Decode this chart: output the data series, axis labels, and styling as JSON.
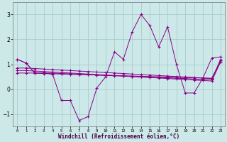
{
  "x": [
    0,
    1,
    2,
    3,
    4,
    5,
    6,
    7,
    8,
    9,
    10,
    11,
    12,
    13,
    14,
    15,
    16,
    17,
    18,
    19,
    20,
    21,
    22,
    23
  ],
  "line1": [
    1.2,
    1.05,
    0.65,
    0.65,
    0.6,
    -0.45,
    -0.45,
    -1.25,
    -1.1,
    0.05,
    0.5,
    1.5,
    1.2,
    2.3,
    3.0,
    2.55,
    1.7,
    2.5,
    1.0,
    -0.15,
    -0.15,
    0.45,
    1.25,
    1.3
  ],
  "line2": [
    1.2,
    1.05,
    0.65,
    0.65,
    0.65,
    0.63,
    0.62,
    0.6,
    0.58,
    0.57,
    0.55,
    0.54,
    0.53,
    0.51,
    0.5,
    0.48,
    0.47,
    0.46,
    0.44,
    0.43,
    0.41,
    0.4,
    0.38,
    1.2
  ],
  "line3": [
    0.65,
    0.65,
    0.65,
    0.63,
    0.62,
    0.61,
    0.6,
    0.59,
    0.58,
    0.57,
    0.56,
    0.55,
    0.54,
    0.53,
    0.52,
    0.51,
    0.5,
    0.49,
    0.48,
    0.47,
    0.46,
    0.45,
    0.44,
    1.1
  ],
  "line4": [
    0.75,
    0.75,
    0.73,
    0.71,
    0.69,
    0.67,
    0.65,
    0.63,
    0.61,
    0.59,
    0.57,
    0.55,
    0.53,
    0.51,
    0.49,
    0.47,
    0.45,
    0.43,
    0.41,
    0.39,
    0.37,
    0.35,
    0.33,
    1.1
  ],
  "line5": [
    0.85,
    0.85,
    0.83,
    0.81,
    0.79,
    0.77,
    0.75,
    0.73,
    0.71,
    0.69,
    0.67,
    0.65,
    0.63,
    0.61,
    0.59,
    0.57,
    0.55,
    0.53,
    0.51,
    0.49,
    0.47,
    0.45,
    0.43,
    1.15
  ],
  "color": "#880088",
  "bg_color": "#cce8e8",
  "grid_color": "#aacccc",
  "xlabel": "Windchill (Refroidissement éolien,°C)",
  "ylim": [
    -1.5,
    3.5
  ],
  "xlim": [
    -0.5,
    23.5
  ],
  "yticks": [
    -1,
    0,
    1,
    2,
    3
  ],
  "xticks": [
    0,
    1,
    2,
    3,
    4,
    5,
    6,
    7,
    8,
    9,
    10,
    11,
    12,
    13,
    14,
    15,
    16,
    17,
    18,
    19,
    20,
    21,
    22,
    23
  ]
}
